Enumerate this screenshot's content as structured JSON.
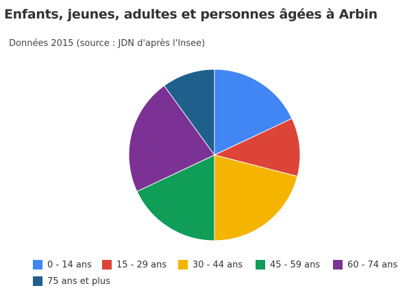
{
  "chart_data": {
    "type": "pie",
    "title": "Enfants, jeunes, adultes et personnes âgées à Arbin",
    "subtitle": "Données 2015 (source : JDN d'après l'Insee)",
    "categories": [
      "0 - 14 ans",
      "15 - 29 ans",
      "30 - 44 ans",
      "45 - 59 ans",
      "60 - 74 ans",
      "75 ans et plus"
    ],
    "values": [
      18,
      11,
      21,
      18,
      22,
      10
    ],
    "colors": [
      "#4285f4",
      "#db4437",
      "#f4b400",
      "#0f9d58",
      "#7b3294",
      "#1f5f8b"
    ],
    "legend_position": "bottom"
  }
}
